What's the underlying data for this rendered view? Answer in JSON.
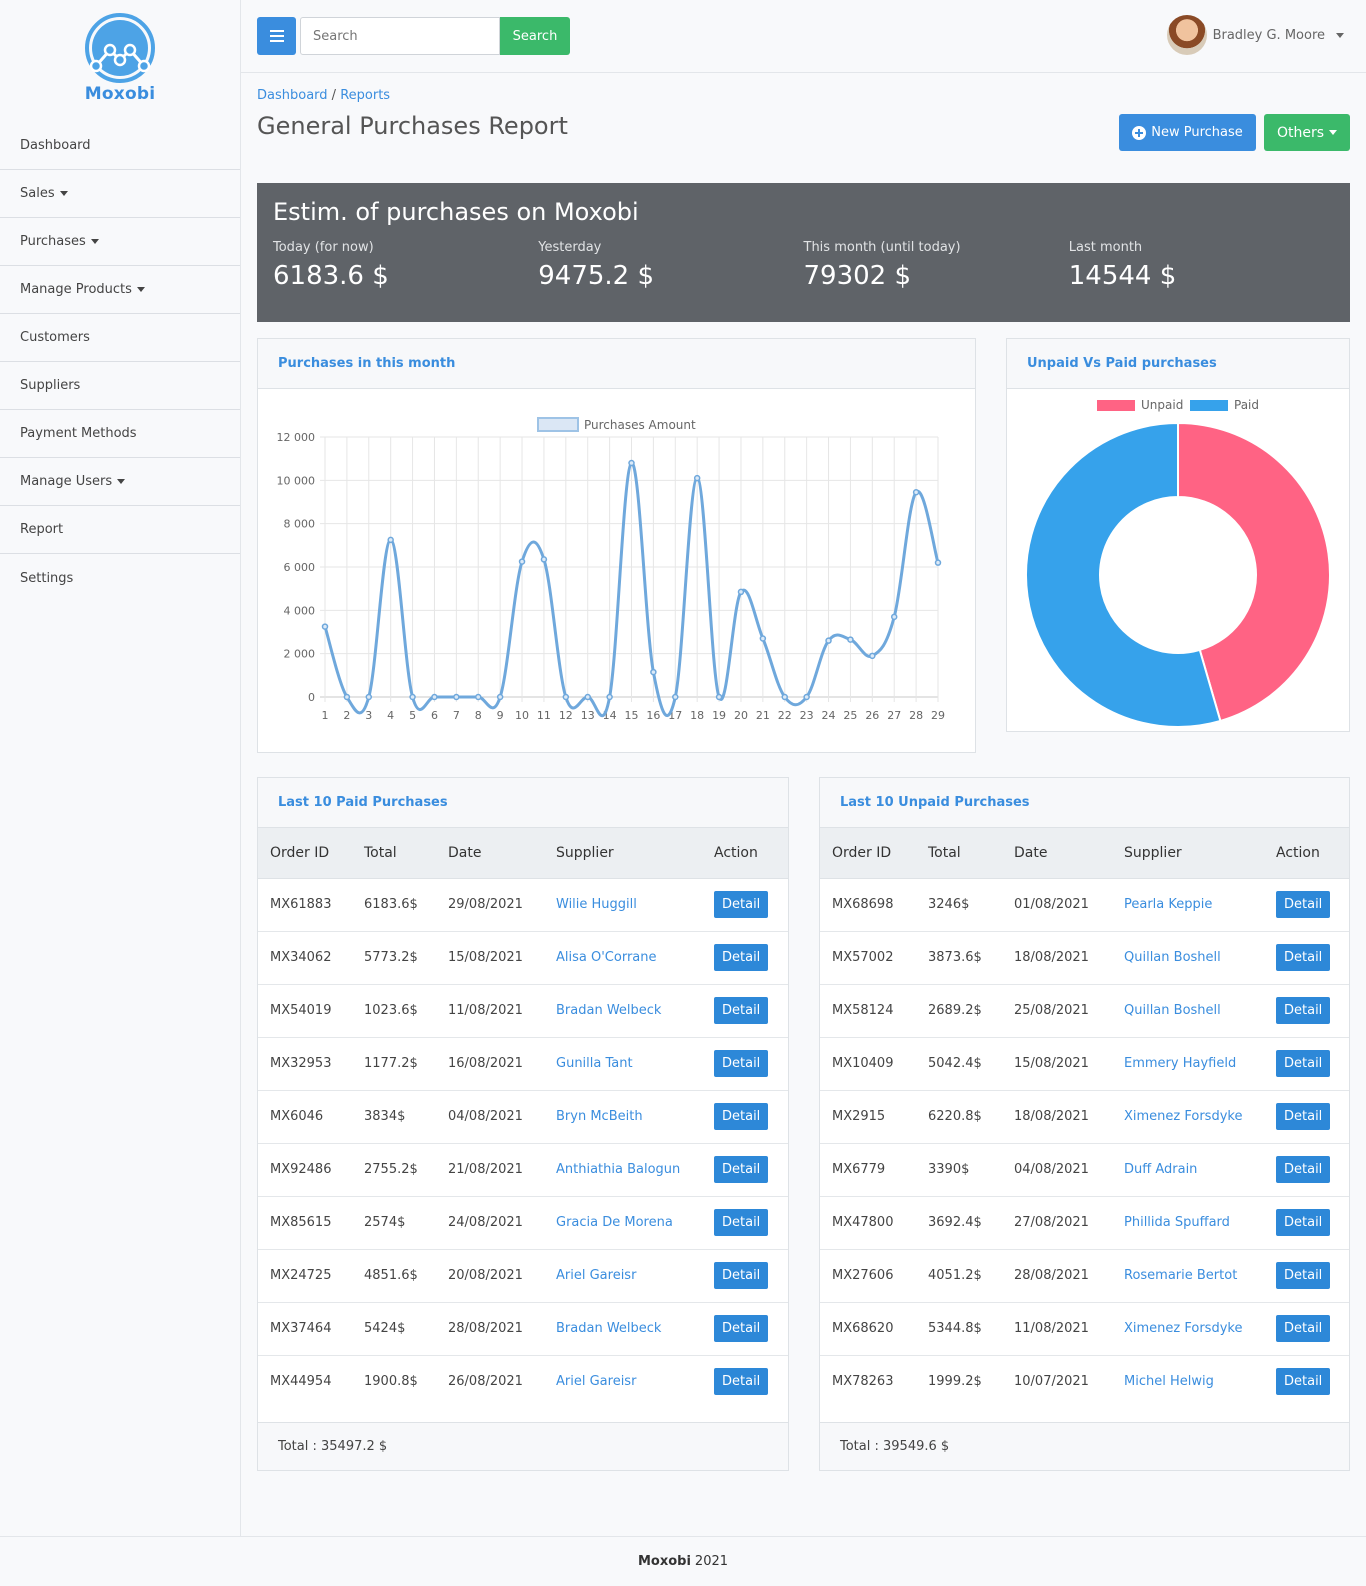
{
  "brand": {
    "name": "Moxobi"
  },
  "sidebar": {
    "items": [
      {
        "label": "Dashboard",
        "dropdown": false
      },
      {
        "label": "Sales",
        "dropdown": true
      },
      {
        "label": "Purchases",
        "dropdown": true
      },
      {
        "label": "Manage Products",
        "dropdown": true
      },
      {
        "label": "Customers",
        "dropdown": false
      },
      {
        "label": "Suppliers",
        "dropdown": false
      },
      {
        "label": "Payment Methods",
        "dropdown": false
      },
      {
        "label": "Manage Users",
        "dropdown": true
      },
      {
        "label": "Report",
        "dropdown": false
      },
      {
        "label": "Settings",
        "dropdown": false
      }
    ]
  },
  "topbar": {
    "search_placeholder": "Search",
    "search_button": "Search",
    "user_name": "Bradley G. Moore"
  },
  "breadcrumb": {
    "home": "Dashboard",
    "separator": "/",
    "current": "Reports"
  },
  "page": {
    "title": "General Purchases Report",
    "new_purchase_label": "New Purchase",
    "others_label": "Others"
  },
  "stats": {
    "title": "Estim. of purchases on Moxobi",
    "items": [
      {
        "label": "Today (for now)",
        "value": "6183.6 $"
      },
      {
        "label": "Yesterday",
        "value": "9475.2 $"
      },
      {
        "label": "This month (until today)",
        "value": "79302 $"
      },
      {
        "label": "Last month",
        "value": "14544 $"
      }
    ]
  },
  "line_chart": {
    "title": "Purchases in this month"
  },
  "donut_chart": {
    "title": "Unpaid Vs Paid purchases"
  },
  "chart_data": [
    {
      "type": "line",
      "x": [
        1,
        2,
        3,
        4,
        5,
        6,
        7,
        8,
        9,
        10,
        11,
        12,
        13,
        14,
        15,
        16,
        17,
        18,
        19,
        20,
        21,
        22,
        23,
        24,
        25,
        26,
        27,
        28,
        29
      ],
      "series": [
        {
          "name": "Purchases Amount",
          "values": [
            3250,
            0,
            0,
            7250,
            0,
            0,
            0,
            0,
            0,
            6250,
            6350,
            0,
            0,
            0,
            10800,
            1150,
            0,
            10100,
            0,
            4850,
            2700,
            0,
            0,
            2600,
            2650,
            1900,
            3700,
            9450,
            6200
          ]
        }
      ],
      "yticks": [
        "12 000",
        "10 000",
        "8 000",
        "6 000",
        "4 000",
        "2 000",
        "0"
      ],
      "ylim": [
        0,
        12000
      ],
      "grid": true,
      "legend": "top",
      "color": "#6fa8dc"
    },
    {
      "type": "pie",
      "labels": [
        "Unpaid",
        "Paid"
      ],
      "values": [
        45.5,
        54.5
      ],
      "colors": [
        "#ff6384",
        "#36a2eb"
      ],
      "legend": "top"
    }
  ],
  "paid_table": {
    "title": "Last 10 Paid Purchases",
    "columns": [
      "Order ID",
      "Total",
      "Date",
      "Supplier",
      "Action"
    ],
    "rows": [
      {
        "id": "MX61883",
        "total": "6183.6$",
        "date": "29/08/2021",
        "supplier": "Wilie Huggill"
      },
      {
        "id": "MX34062",
        "total": "5773.2$",
        "date": "15/08/2021",
        "supplier": "Alisa O'Corrane"
      },
      {
        "id": "MX54019",
        "total": "1023.6$",
        "date": "11/08/2021",
        "supplier": "Bradan Welbeck"
      },
      {
        "id": "MX32953",
        "total": "1177.2$",
        "date": "16/08/2021",
        "supplier": "Gunilla Tant"
      },
      {
        "id": "MX6046",
        "total": "3834$",
        "date": "04/08/2021",
        "supplier": "Bryn McBeith"
      },
      {
        "id": "MX92486",
        "total": "2755.2$",
        "date": "21/08/2021",
        "supplier": "Anthiathia Balogun"
      },
      {
        "id": "MX85615",
        "total": "2574$",
        "date": "24/08/2021",
        "supplier": "Gracia De Morena"
      },
      {
        "id": "MX24725",
        "total": "4851.6$",
        "date": "20/08/2021",
        "supplier": "Ariel Gareisr"
      },
      {
        "id": "MX37464",
        "total": "5424$",
        "date": "28/08/2021",
        "supplier": "Bradan Welbeck"
      },
      {
        "id": "MX44954",
        "total": "1900.8$",
        "date": "26/08/2021",
        "supplier": "Ariel Gareisr"
      }
    ],
    "action_label": "Detail",
    "total": "Total : 35497.2 $"
  },
  "unpaid_table": {
    "title": "Last 10 Unpaid Purchases",
    "columns": [
      "Order ID",
      "Total",
      "Date",
      "Supplier",
      "Action"
    ],
    "rows": [
      {
        "id": "MX68698",
        "total": "3246$",
        "date": "01/08/2021",
        "supplier": "Pearla Keppie"
      },
      {
        "id": "MX57002",
        "total": "3873.6$",
        "date": "18/08/2021",
        "supplier": "Quillan Boshell"
      },
      {
        "id": "MX58124",
        "total": "2689.2$",
        "date": "25/08/2021",
        "supplier": "Quillan Boshell"
      },
      {
        "id": "MX10409",
        "total": "5042.4$",
        "date": "15/08/2021",
        "supplier": "Emmery Hayfield"
      },
      {
        "id": "MX2915",
        "total": "6220.8$",
        "date": "18/08/2021",
        "supplier": "Ximenez Forsdyke"
      },
      {
        "id": "MX6779",
        "total": "3390$",
        "date": "04/08/2021",
        "supplier": "Duff Adrain"
      },
      {
        "id": "MX47800",
        "total": "3692.4$",
        "date": "27/08/2021",
        "supplier": "Phillida Spuffard"
      },
      {
        "id": "MX27606",
        "total": "4051.2$",
        "date": "28/08/2021",
        "supplier": "Rosemarie Bertot"
      },
      {
        "id": "MX68620",
        "total": "5344.8$",
        "date": "11/08/2021",
        "supplier": "Ximenez Forsdyke"
      },
      {
        "id": "MX78263",
        "total": "1999.2$",
        "date": "10/07/2021",
        "supplier": "Michel Helwig"
      }
    ],
    "action_label": "Detail",
    "total": "Total : 39549.6 $"
  },
  "footer": {
    "brand": "Moxobi",
    "year": "2021"
  }
}
